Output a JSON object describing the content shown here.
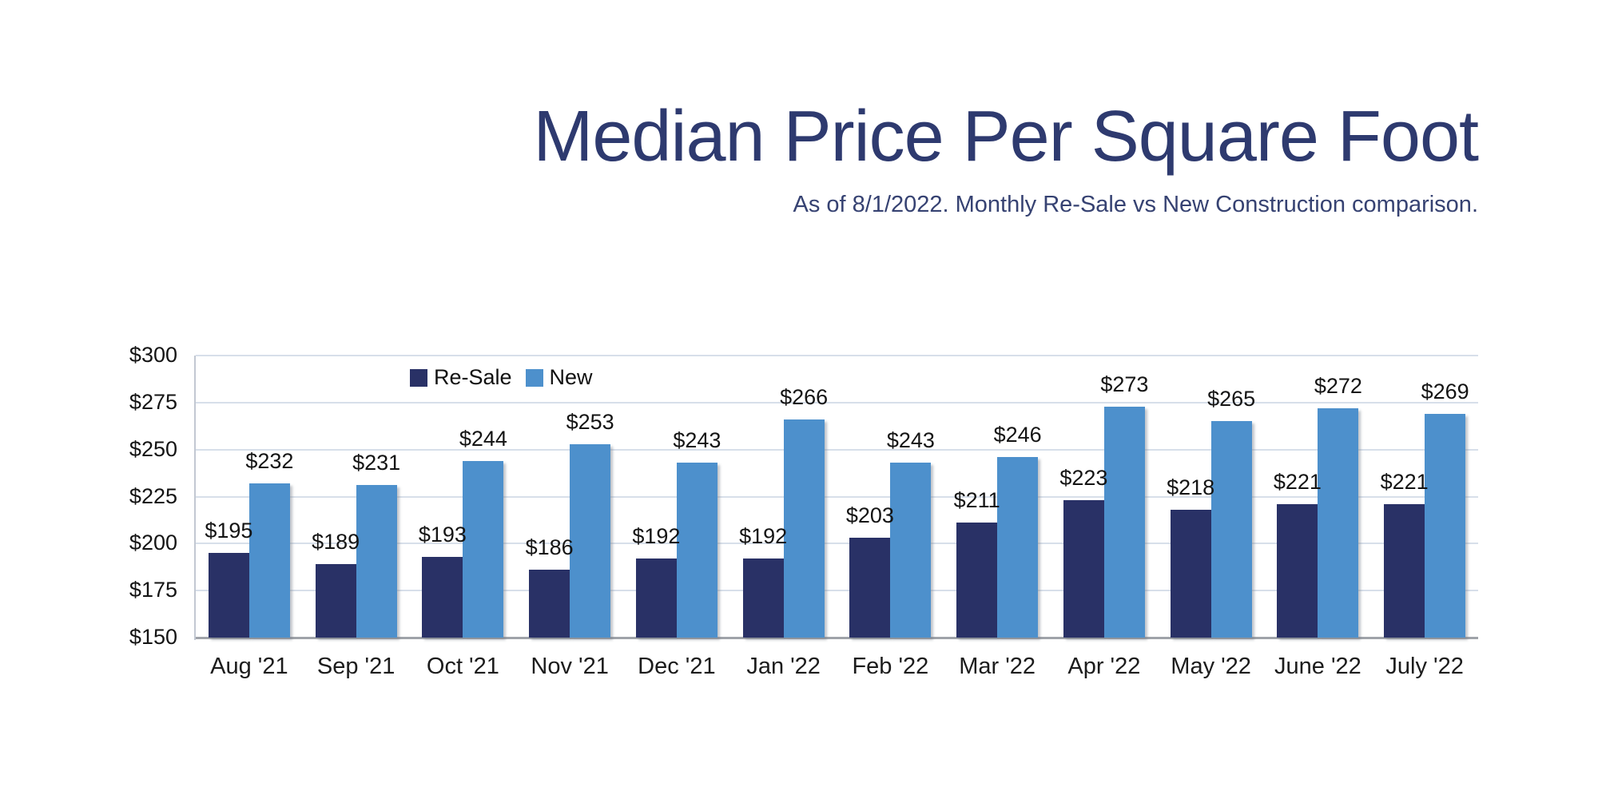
{
  "chart_data": {
    "type": "bar",
    "title": "Median Price Per Square Foot",
    "subtitle": "As of 8/1/2022. Monthly Re-Sale vs New Construction comparison.",
    "categories": [
      "Aug '21",
      "Sep '21",
      "Oct '21",
      "Nov '21",
      "Dec '21",
      "Jan '22",
      "Feb '22",
      "Mar '22",
      "Apr '22",
      "May '22",
      "June '22",
      "July '22"
    ],
    "series": [
      {
        "name": "Re-Sale",
        "color": "#293166",
        "values": [
          195,
          189,
          193,
          186,
          192,
          192,
          203,
          211,
          223,
          218,
          221,
          221
        ]
      },
      {
        "name": "New",
        "color": "#4D90CC",
        "values": [
          232,
          231,
          244,
          253,
          243,
          266,
          243,
          246,
          273,
          265,
          272,
          269
        ]
      }
    ],
    "value_prefix": "$",
    "ylim": [
      150,
      300
    ],
    "yticks": [
      300,
      275,
      250,
      225,
      200,
      175,
      150
    ],
    "ytick_labels": [
      "$300",
      "$275",
      "$250",
      "$225",
      "$200",
      "$175",
      "$150"
    ],
    "grid": true,
    "legend_position": "top-left-inside",
    "colors": {
      "title": "#2E3A6F",
      "subtitle": "#364272",
      "gridline": "#D7DFEA",
      "x_axis_line": "#9FA3A9",
      "y_axis_line": "#C2C8D2"
    }
  }
}
